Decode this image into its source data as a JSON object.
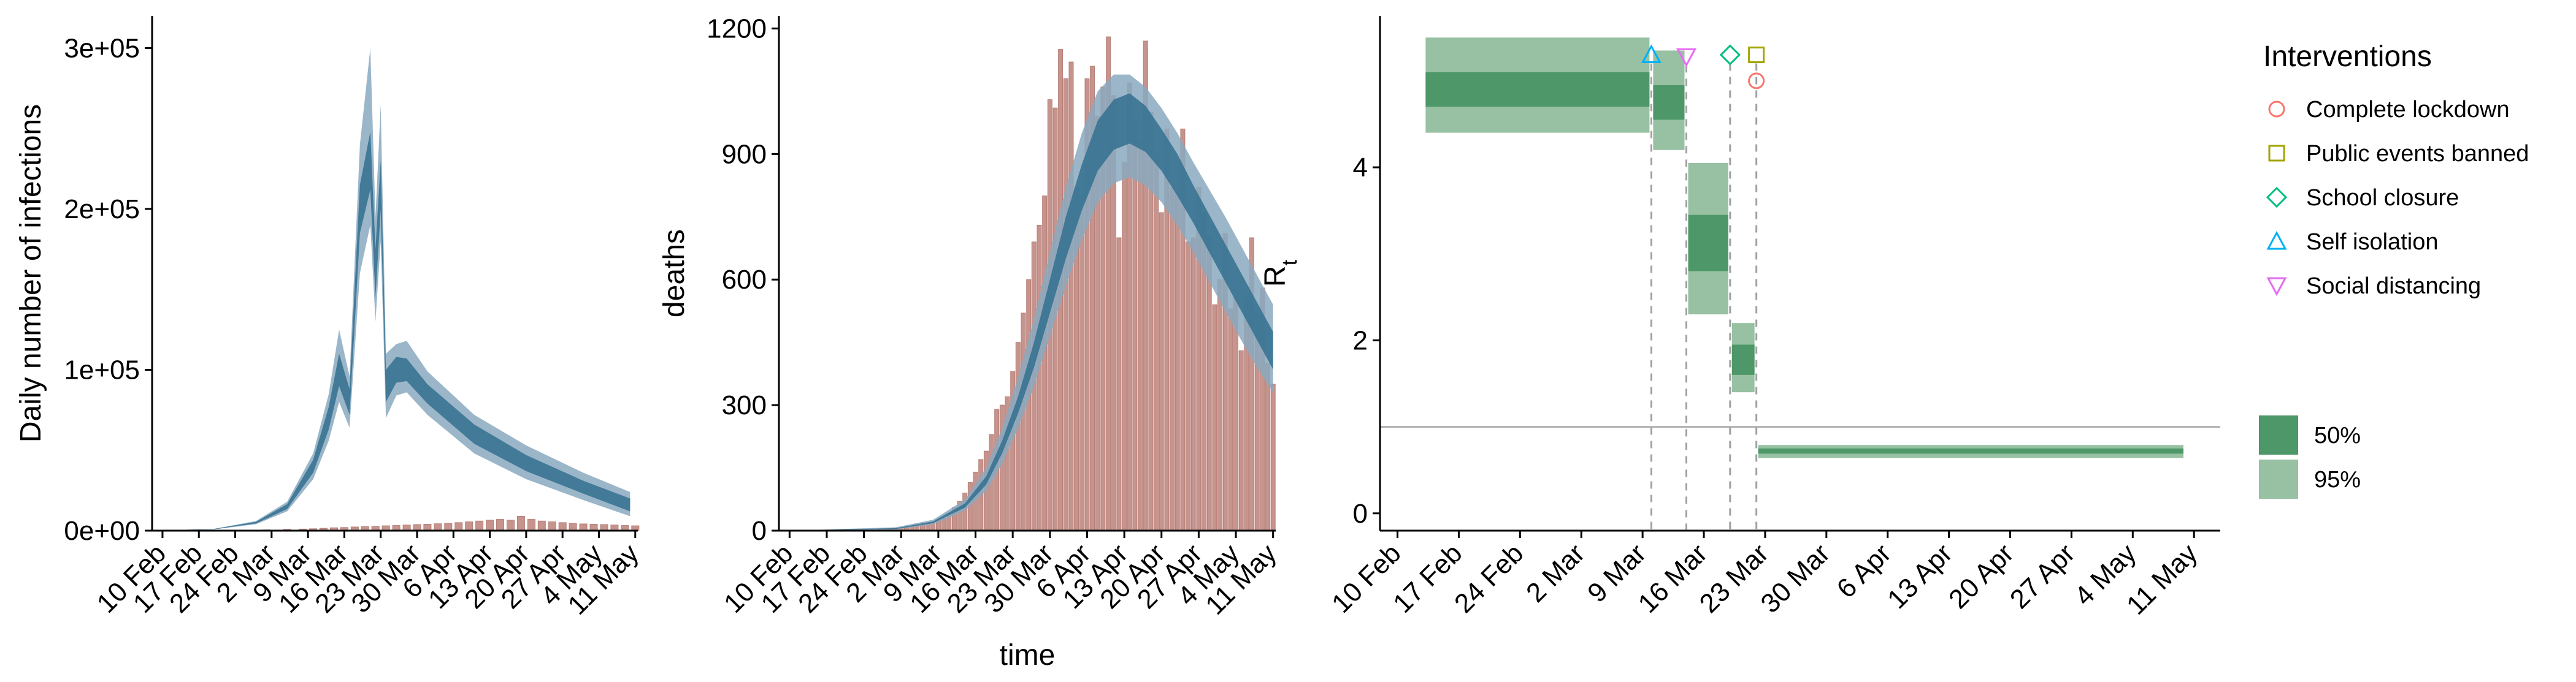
{
  "colors": {
    "infection_band_outer": "#8aa9bf",
    "infection_band_inner": "#33708f",
    "observed_bars": "#c7948d",
    "rt_band_95": "#97c1a2",
    "rt_band_50": "#4e9768",
    "reference_line": "#b0b0b0",
    "intervention_line": "#a0a0a0",
    "lockdown": "#f8766d",
    "public_events": "#a3a500",
    "school": "#00bf7d",
    "self_isolation": "#00b0f6",
    "social_distancing": "#e76bf3"
  },
  "chart_data": [
    {
      "type": "area",
      "xlabel": "",
      "ylabel": "Daily number of infections",
      "ylim": [
        0,
        320000
      ],
      "yticks": [
        0,
        100000,
        200000,
        300000
      ],
      "ytick_labels": [
        "0e+00",
        "1e+05",
        "2e+05",
        "3e+05"
      ],
      "xticks": [
        "10 Feb",
        "17 Feb",
        "24 Feb",
        "2 Mar",
        "9 Mar",
        "16 Mar",
        "23 Mar",
        "30 Mar",
        "6 Apr",
        "13 Apr",
        "20 Apr",
        "27 Apr",
        "4 May",
        "11 May"
      ],
      "series": [
        {
          "x": [
            "2020-02-10",
            "2020-02-20",
            "2020-02-28",
            "2020-03-05",
            "2020-03-10",
            "2020-03-13",
            "2020-03-15",
            "2020-03-17",
            "2020-03-19",
            "2020-03-21",
            "2020-03-22",
            "2020-03-23",
            "2020-03-24",
            "2020-03-26",
            "2020-03-28",
            "2020-04-01",
            "2020-04-10",
            "2020-04-20",
            "2020-05-01",
            "2020-05-10"
          ],
          "median": [
            100,
            1000,
            5000,
            15000,
            40000,
            70000,
            100000,
            80000,
            200000,
            230000,
            160000,
            215000,
            90000,
            100000,
            100000,
            85000,
            60000,
            42000,
            27000,
            16000
          ],
          "ci50_low": [
            90,
            900,
            4500,
            13500,
            36000,
            63000,
            90000,
            72000,
            185000,
            212000,
            145000,
            200000,
            80000,
            92000,
            93000,
            79000,
            54000,
            37000,
            23000,
            12000
          ],
          "ci50_high": [
            110,
            1100,
            5500,
            16500,
            44000,
            77000,
            110000,
            88000,
            215000,
            248000,
            175000,
            230000,
            100000,
            108000,
            107000,
            91000,
            66000,
            47000,
            31000,
            20000
          ],
          "ci95_low": [
            80,
            800,
            4000,
            12000,
            32000,
            56000,
            80000,
            64000,
            160000,
            190000,
            130000,
            180000,
            70000,
            84000,
            86000,
            72000,
            48000,
            32000,
            19000,
            9000
          ],
          "ci95_high": [
            120,
            1200,
            6000,
            18000,
            48000,
            85000,
            125000,
            96000,
            240000,
            300000,
            195000,
            265000,
            110000,
            116000,
            118000,
            99000,
            72000,
            53000,
            36000,
            24000
          ]
        }
      ],
      "observed_cases": {
        "x": [
          "2020-02-24",
          "2020-03-01",
          "2020-03-05",
          "2020-03-08",
          "2020-03-10",
          "2020-03-12",
          "2020-03-14",
          "2020-03-16",
          "2020-03-18",
          "2020-03-20",
          "2020-03-22",
          "2020-03-24",
          "2020-03-26",
          "2020-03-28",
          "2020-03-30",
          "2020-04-01",
          "2020-04-03",
          "2020-04-05",
          "2020-04-07",
          "2020-04-09",
          "2020-04-11",
          "2020-04-13",
          "2020-04-15",
          "2020-04-17",
          "2020-04-19",
          "2020-04-21",
          "2020-04-23",
          "2020-04-25",
          "2020-04-27",
          "2020-04-29",
          "2020-05-01",
          "2020-05-03",
          "2020-05-05",
          "2020-05-07",
          "2020-05-09",
          "2020-05-11"
        ],
        "values": [
          300,
          500,
          800,
          1000,
          1200,
          1500,
          1800,
          2000,
          2300,
          2500,
          2700,
          3000,
          3200,
          3500,
          3800,
          4000,
          4300,
          4500,
          5000,
          5500,
          6000,
          6500,
          7000,
          6500,
          9000,
          7000,
          6000,
          5500,
          5000,
          4500,
          4200,
          4000,
          3800,
          3500,
          3200,
          3000
        ]
      }
    },
    {
      "type": "area",
      "xlabel": "time",
      "ylabel": "deaths",
      "ylim": [
        0,
        1230
      ],
      "yticks": [
        0,
        300,
        600,
        900,
        1200
      ],
      "ytick_labels": [
        "0",
        "300",
        "600",
        "900",
        "1200"
      ],
      "xticks": [
        "10 Feb",
        "17 Feb",
        "24 Feb",
        "2 Mar",
        "9 Mar",
        "16 Mar",
        "23 Mar",
        "30 Mar",
        "6 Apr",
        "13 Apr",
        "20 Apr",
        "27 Apr",
        "4 May",
        "11 May"
      ],
      "series": [
        {
          "x": [
            "2020-02-10",
            "2020-03-01",
            "2020-03-08",
            "2020-03-14",
            "2020-03-18",
            "2020-03-21",
            "2020-03-24",
            "2020-03-27",
            "2020-03-30",
            "2020-04-02",
            "2020-04-05",
            "2020-04-08",
            "2020-04-11",
            "2020-04-14",
            "2020-04-17",
            "2020-04-20",
            "2020-04-23",
            "2020-04-26",
            "2020-04-29",
            "2020-05-02",
            "2020-05-05",
            "2020-05-08",
            "2020-05-11"
          ],
          "median": [
            0,
            5,
            20,
            60,
            120,
            200,
            300,
            420,
            560,
            700,
            820,
            920,
            970,
            985,
            960,
            910,
            850,
            780,
            710,
            640,
            570,
            500,
            430
          ],
          "ci50_low": [
            0,
            4,
            18,
            55,
            110,
            185,
            280,
            390,
            520,
            650,
            765,
            860,
            910,
            925,
            905,
            860,
            800,
            735,
            665,
            595,
            525,
            455,
            385
          ],
          "ci50_high": [
            0,
            6,
            22,
            65,
            130,
            215,
            320,
            450,
            600,
            750,
            875,
            980,
            1030,
            1045,
            1015,
            960,
            900,
            825,
            755,
            685,
            615,
            545,
            475
          ],
          "ci95_low": [
            0,
            3,
            15,
            48,
            95,
            160,
            245,
            345,
            465,
            585,
            695,
            785,
            830,
            845,
            825,
            785,
            730,
            665,
            595,
            525,
            455,
            390,
            330
          ],
          "ci95_high": [
            0,
            8,
            26,
            74,
            150,
            245,
            365,
            505,
            665,
            820,
            950,
            1050,
            1090,
            1090,
            1060,
            1010,
            950,
            880,
            815,
            750,
            680,
            610,
            540
          ]
        }
      ],
      "observed_deaths": {
        "x": [
          "2020-02-27",
          "2020-02-28",
          "2020-02-29",
          "2020-03-01",
          "2020-03-02",
          "2020-03-03",
          "2020-03-04",
          "2020-03-05",
          "2020-03-06",
          "2020-03-07",
          "2020-03-08",
          "2020-03-09",
          "2020-03-10",
          "2020-03-11",
          "2020-03-12",
          "2020-03-13",
          "2020-03-14",
          "2020-03-15",
          "2020-03-16",
          "2020-03-17",
          "2020-03-18",
          "2020-03-19",
          "2020-03-20",
          "2020-03-21",
          "2020-03-22",
          "2020-03-23",
          "2020-03-24",
          "2020-03-25",
          "2020-03-26",
          "2020-03-27",
          "2020-03-28",
          "2020-03-29",
          "2020-03-30",
          "2020-03-31",
          "2020-04-01",
          "2020-04-02",
          "2020-04-03",
          "2020-04-04",
          "2020-04-05",
          "2020-04-06",
          "2020-04-07",
          "2020-04-08",
          "2020-04-09",
          "2020-04-10",
          "2020-04-11",
          "2020-04-12",
          "2020-04-13",
          "2020-04-14",
          "2020-04-15",
          "2020-04-16",
          "2020-04-17",
          "2020-04-18",
          "2020-04-19",
          "2020-04-20",
          "2020-04-21",
          "2020-04-22",
          "2020-04-23",
          "2020-04-24",
          "2020-04-25",
          "2020-04-26",
          "2020-04-27",
          "2020-04-28",
          "2020-04-29",
          "2020-04-30",
          "2020-05-01",
          "2020-05-02",
          "2020-05-03",
          "2020-05-04",
          "2020-05-05",
          "2020-05-06",
          "2020-05-07",
          "2020-05-08",
          "2020-05-09",
          "2020-05-10",
          "2020-05-11"
        ],
        "values": [
          2,
          3,
          4,
          5,
          6,
          8,
          10,
          12,
          14,
          17,
          20,
          25,
          30,
          40,
          55,
          70,
          90,
          115,
          140,
          170,
          190,
          230,
          290,
          300,
          320,
          380,
          450,
          520,
          600,
          690,
          730,
          800,
          1030,
          1010,
          1150,
          1080,
          1120,
          820,
          800,
          1080,
          1110,
          990,
          1060,
          1180,
          1040,
          700,
          880,
          1070,
          980,
          930,
          1170,
          1000,
          900,
          760,
          960,
          820,
          810,
          960,
          690,
          700,
          820,
          760,
          700,
          540,
          600,
          710,
          530,
          560,
          430,
          560,
          700,
          520,
          580,
          400,
          350
        ]
      }
    },
    {
      "type": "area",
      "xlabel": "",
      "ylabel": "R",
      "ylabel_subscript": "t",
      "ylim": [
        -0.2,
        5.75
      ],
      "yticks": [
        0,
        2,
        4
      ],
      "ytick_labels": [
        "0",
        "2",
        "4"
      ],
      "xticks": [
        "10 Feb",
        "17 Feb",
        "24 Feb",
        "2 Mar",
        "9 Mar",
        "16 Mar",
        "23 Mar",
        "30 Mar",
        "6 Apr",
        "13 Apr",
        "20 Apr",
        "27 Apr",
        "4 May",
        "11 May"
      ],
      "reference_line": 1,
      "segments": [
        {
          "start": "2020-02-13",
          "end": "2020-03-10",
          "ci50": [
            4.7,
            5.1
          ],
          "ci95": [
            4.4,
            5.5
          ]
        },
        {
          "start": "2020-03-10",
          "end": "2020-03-14",
          "ci50": [
            4.55,
            4.95
          ],
          "ci95": [
            4.2,
            5.35
          ]
        },
        {
          "start": "2020-03-14",
          "end": "2020-03-19",
          "ci50": [
            2.8,
            3.45
          ],
          "ci95": [
            2.3,
            4.05
          ]
        },
        {
          "start": "2020-03-19",
          "end": "2020-03-22",
          "ci50": [
            1.6,
            1.95
          ],
          "ci95": [
            1.4,
            2.2
          ]
        },
        {
          "start": "2020-03-22",
          "end": "2020-05-10",
          "ci50": [
            0.69,
            0.75
          ],
          "ci95": [
            0.64,
            0.79
          ]
        }
      ],
      "interventions": [
        {
          "name": "Self isolation",
          "date": "2020-03-10",
          "marker": "triangle-up",
          "y": 5.3,
          "color_key": "self_isolation"
        },
        {
          "name": "Social distancing",
          "date": "2020-03-14",
          "marker": "triangle-down",
          "y": 5.28,
          "color_key": "social_distancing"
        },
        {
          "name": "School closure",
          "date": "2020-03-19",
          "marker": "diamond",
          "y": 5.3,
          "color_key": "school"
        },
        {
          "name": "Public events banned",
          "date": "2020-03-22",
          "marker": "square",
          "y": 5.3,
          "color_key": "public_events"
        },
        {
          "name": "Complete lockdown",
          "date": "2020-03-22",
          "marker": "circle",
          "y": 5.0,
          "color_key": "lockdown"
        }
      ],
      "legend": {
        "title": "Interventions",
        "placement": "right",
        "items": [
          {
            "label": "Complete lockdown",
            "marker": "circle",
            "color_key": "lockdown"
          },
          {
            "label": "Public events banned",
            "marker": "square",
            "color_key": "public_events"
          },
          {
            "label": "School closure",
            "marker": "diamond",
            "color_key": "school"
          },
          {
            "label": "Self isolation",
            "marker": "triangle-up",
            "color_key": "self_isolation"
          },
          {
            "label": "Social distancing",
            "marker": "triangle-down",
            "color_key": "social_distancing"
          }
        ],
        "interval_items": [
          {
            "label": "50%",
            "color_key": "rt_band_50"
          },
          {
            "label": "95%",
            "color_key": "rt_band_95"
          }
        ]
      }
    }
  ]
}
